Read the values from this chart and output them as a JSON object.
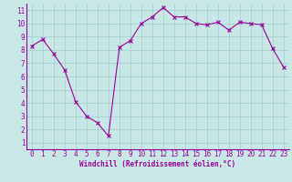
{
  "x": [
    0,
    1,
    2,
    3,
    4,
    5,
    6,
    7,
    8,
    9,
    10,
    11,
    12,
    13,
    14,
    15,
    16,
    17,
    18,
    19,
    20,
    21,
    22,
    23
  ],
  "y": [
    8.3,
    8.8,
    7.7,
    6.5,
    4.1,
    3.0,
    2.5,
    1.5,
    8.2,
    8.7,
    10.0,
    10.5,
    11.2,
    10.5,
    10.5,
    10.0,
    9.9,
    10.1,
    9.5,
    10.1,
    10.0,
    9.9,
    8.1,
    6.7
  ],
  "line_color": "#990099",
  "marker": "x",
  "marker_size": 2.5,
  "marker_linewidth": 0.8,
  "line_width": 0.8,
  "background_color": "#c8e8e8",
  "grid_color": "#a0cccc",
  "xlabel": "Windchill (Refroidissement éolien,°C)",
  "xlabel_color": "#990099",
  "tick_color": "#990099",
  "spine_color": "#990099",
  "xlim_min": -0.5,
  "xlim_max": 23.5,
  "ylim_min": 0.5,
  "ylim_max": 11.5,
  "yticks": [
    1,
    2,
    3,
    4,
    5,
    6,
    7,
    8,
    9,
    10,
    11
  ],
  "xticks": [
    0,
    1,
    2,
    3,
    4,
    5,
    6,
    7,
    8,
    9,
    10,
    11,
    12,
    13,
    14,
    15,
    16,
    17,
    18,
    19,
    20,
    21,
    22,
    23
  ],
  "tick_fontsize": 5.5,
  "xlabel_fontsize": 5.5
}
